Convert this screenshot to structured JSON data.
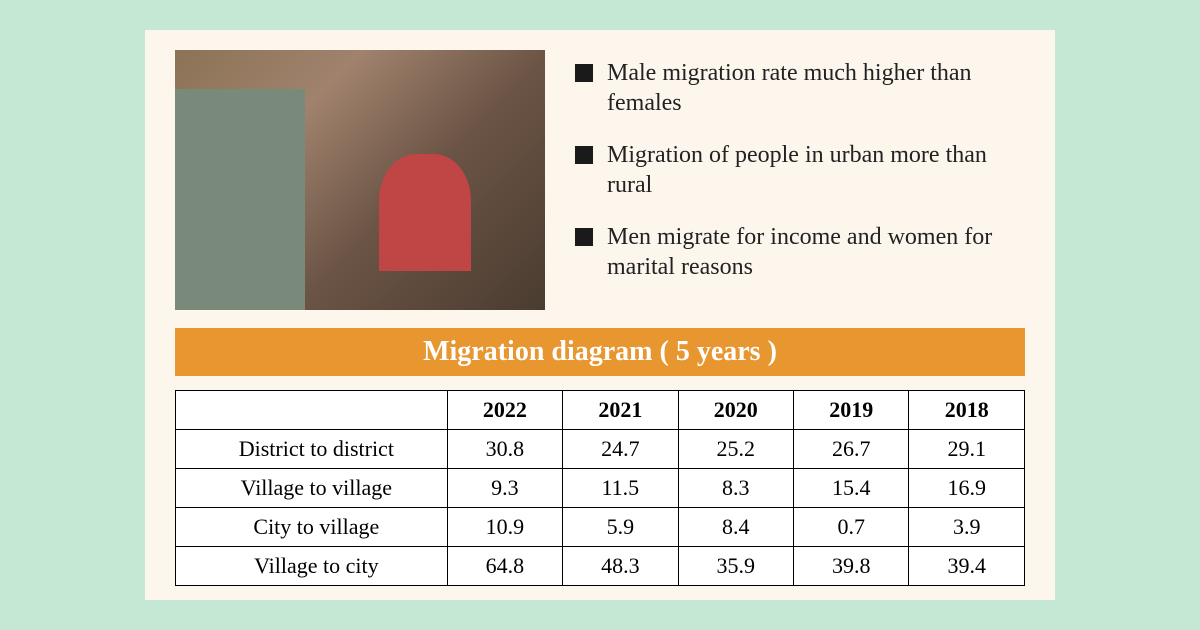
{
  "bullets": [
    "Male migration rate much higher than females",
    "Migration of people in urban more than rural",
    "Men migrate for income and women for marital reasons"
  ],
  "banner": {
    "title": "Migration diagram ( 5 years )",
    "background_color": "#e8962f",
    "text_color": "#ffffff",
    "fontsize": 28
  },
  "table": {
    "columns": [
      "",
      "2022",
      "2021",
      "2020",
      "2019",
      "2018"
    ],
    "rows": [
      [
        "District to district",
        "30.8",
        "24.7",
        "25.2",
        "26.7",
        "29.1"
      ],
      [
        "Village to village",
        "9.3",
        "11.5",
        "8.3",
        "15.4",
        "16.9"
      ],
      [
        "City to village",
        "10.9",
        "5.9",
        "8.4",
        "0.7",
        "3.9"
      ],
      [
        "Village to city",
        "64.8",
        "48.3",
        "35.9",
        "39.8",
        "39.4"
      ]
    ],
    "border_color": "#000000",
    "background_color": "#ffffff",
    "cell_fontsize": 22,
    "header_fontweight": "bold"
  },
  "styling": {
    "page_background": "#c5e8d5",
    "panel_background": "#fdf6ed",
    "bullet_marker_color": "#1a1a1a",
    "text_color": "#222222",
    "bullet_fontsize": 24,
    "font_family": "Georgia"
  }
}
